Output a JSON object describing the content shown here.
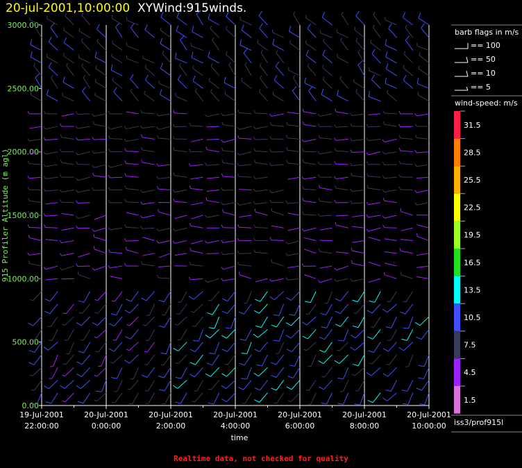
{
  "header": {
    "datetime": "20-jul-2001,10:00:00",
    "plot_name": "XYWind:915winds."
  },
  "legend": {
    "barb_title": "barb flags in m/s",
    "barb_flags": [
      "== 100",
      "== 50",
      "== 10",
      "== 5"
    ],
    "speed_title": "wind-speed: m/s",
    "speed_bins": [
      {
        "label": "31.5",
        "color": "#ff1e46"
      },
      {
        "label": "28.5",
        "color": "#ff7f00"
      },
      {
        "label": "25.5",
        "color": "#ffb000"
      },
      {
        "label": "22.5",
        "color": "#ffff00"
      },
      {
        "label": "19.5",
        "color": "#a0ff20"
      },
      {
        "label": "16.5",
        "color": "#20e020"
      },
      {
        "label": "13.5",
        "color": "#00ffff"
      },
      {
        "label": "10.5",
        "color": "#4050ff"
      },
      {
        "label": "7.5",
        "color": "#3a3a5a"
      },
      {
        "label": "4.5",
        "color": "#a020ff"
      },
      {
        "label": "1.5",
        "color": "#e070e0"
      }
    ],
    "panel_id": "iss3/prof915l"
  },
  "footer": "Realtime data, not checked for quality",
  "chart_data": {
    "type": "wind-barb",
    "ylabel": "915 Profiler Altitude (m agl)",
    "xlabel": "time",
    "ylim": [
      0,
      3000
    ],
    "yticks": [
      "0.00",
      "500.00",
      "1000.00",
      "1500.00",
      "2000.00",
      "2500.00",
      "3000.00"
    ],
    "xticks": [
      {
        "line1": "19-Jul-2001",
        "line2": "22:00:00"
      },
      {
        "line1": "20-Jul-2001",
        "line2": "0:00:00"
      },
      {
        "line1": "20-Jul-2001",
        "line2": "2:00:00"
      },
      {
        "line1": "20-Jul-2001",
        "line2": "4:00:00"
      },
      {
        "line1": "20-Jul-2001",
        "line2": "6:00:00"
      },
      {
        "line1": "20-Jul-2001",
        "line2": "8:00:00"
      },
      {
        "line1": "20-Jul-2001",
        "line2": "10:00:00"
      }
    ],
    "x_range_hours": [
      0,
      12
    ],
    "vertical_gridlines_every_hours": 2,
    "profile_interval_minutes": 30,
    "range_gate_m": 100
  }
}
